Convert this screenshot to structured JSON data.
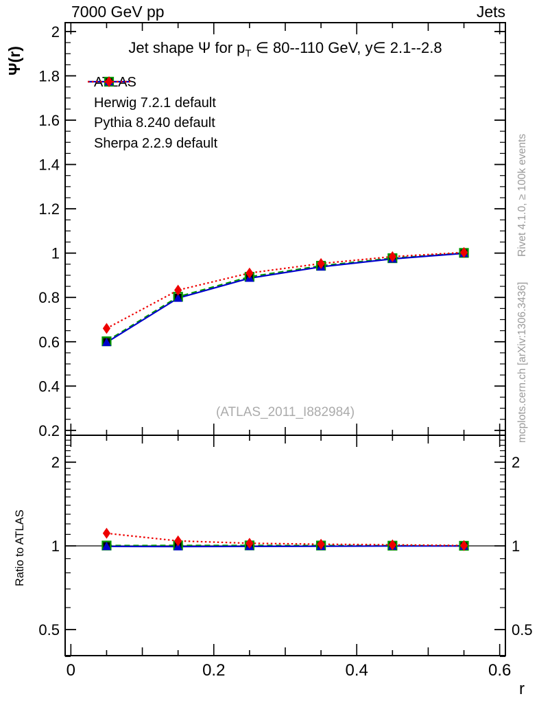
{
  "header": {
    "beam_label": "7000 GeV pp",
    "right_label": "Jets"
  },
  "title": {
    "part1": "Jet shape Ψ for p",
    "sub": "T",
    "part2": " ∈ 80--110 GeV, y∈ 2.1--2.8"
  },
  "side_text": {
    "rivet": "Rivet 4.1.0, ≥ 100k events",
    "mcplots": "mcplots.cern.ch [arXiv:1306.3436]"
  },
  "watermark": "(ATLAS_2011_I882984)",
  "x_axis": {
    "title": "r",
    "tick_labels": [
      "0",
      "0.2",
      "0.4",
      "0.6"
    ]
  },
  "chart_data": {
    "type": "line",
    "title": "Jet shape Ψ for pT ∈ 80--110 GeV, y∈ 2.1--2.8",
    "xlabel": "r",
    "xlim": [
      -0.008,
      0.608
    ],
    "x_major_ticks": [
      0,
      0.2,
      0.4,
      0.6
    ],
    "x_minor_step": 0.05,
    "x": [
      0.05,
      0.15,
      0.25,
      0.35,
      0.45,
      0.55
    ],
    "main_panel": {
      "ylabel": "Ψ(r)",
      "scale": "linear",
      "ylim": [
        0.178,
        2.04
      ],
      "ytick_major_step": 0.2,
      "ytick_minor_step": 0.05,
      "ytick_labels": [
        "0.2",
        "0.4",
        "0.6",
        "0.8",
        "1",
        "1.2",
        "1.4",
        "1.6",
        "1.8",
        "2"
      ]
    },
    "ratio_panel": {
      "ylabel": "Ratio to ATLAS",
      "scale": "log",
      "ylim": [
        0.403,
        2.5
      ],
      "yticks_labeled": [
        0.5,
        1,
        2
      ],
      "ytick_minor_step": 0.1,
      "reference_line": 1.0
    },
    "series": [
      {
        "name": "ATLAS",
        "color": "#000000",
        "marker": "square-filled",
        "line": "none",
        "values": [
          0.6,
          0.8,
          0.89,
          0.94,
          0.975,
          1.0
        ],
        "ratio": [
          1.0,
          1.0,
          1.0,
          1.0,
          1.0,
          1.0
        ]
      },
      {
        "name": "Herwig 7.2.1 default",
        "color": "#009900",
        "marker": "square-open",
        "line": "dashed",
        "values": [
          0.602,
          0.803,
          0.893,
          0.943,
          0.977,
          1.001
        ],
        "ratio": [
          1.003,
          1.004,
          1.004,
          1.003,
          1.002,
          1.001
        ]
      },
      {
        "name": "Pythia 8.240 default",
        "color": "#0000cc",
        "marker": "triangle-filled",
        "line": "solid",
        "values": [
          0.597,
          0.797,
          0.887,
          0.938,
          0.974,
          0.999
        ],
        "ratio": [
          0.996,
          0.994,
          0.996,
          0.997,
          0.999,
          0.999
        ]
      },
      {
        "name": "Sherpa 2.2.9 default",
        "color": "#ee0000",
        "marker": "diamond-filled",
        "line": "dotted",
        "values": [
          0.66,
          0.833,
          0.91,
          0.953,
          0.984,
          1.003
        ],
        "ratio": [
          1.11,
          1.042,
          1.022,
          1.014,
          1.009,
          1.003
        ]
      }
    ]
  }
}
